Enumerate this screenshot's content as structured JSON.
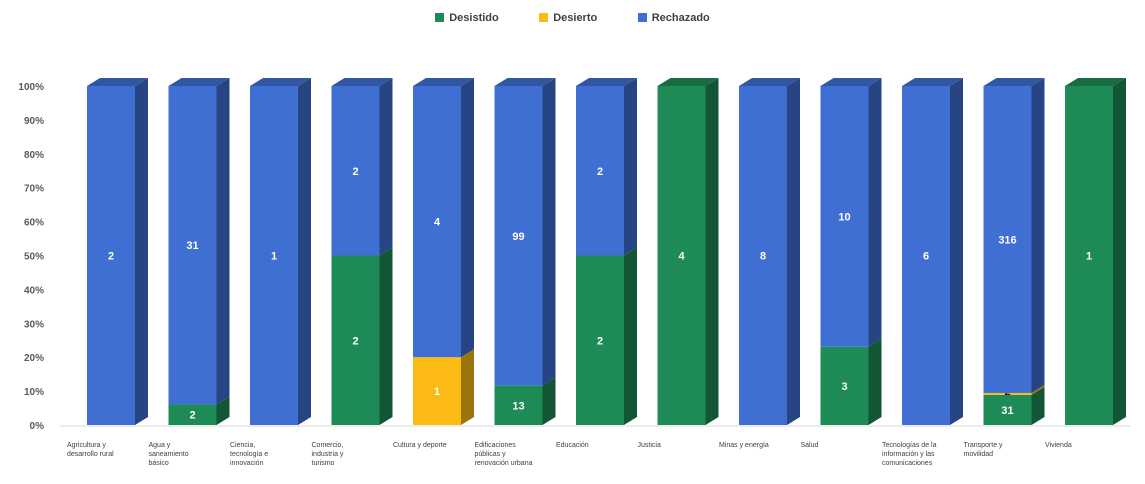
{
  "chart_data": {
    "type": "bar",
    "stacked": "percent",
    "legend_position": "top-center",
    "grid": false,
    "ylim": [
      0,
      100
    ],
    "y_ticks": [
      "0%",
      "10%",
      "20%",
      "30%",
      "40%",
      "50%",
      "60%",
      "70%",
      "80%",
      "90%",
      "100%"
    ],
    "categories": [
      "Agricultura y desarrollo rural",
      "Agua y saneamiento básico",
      "Ciencia, tecnología e innovación",
      "Comercio, industria y turismo",
      "Cultura y deporte",
      "Edificaciones públicas y renovación urbana",
      "Educación",
      "Justicia",
      "Minas y energía",
      "Salud",
      "Tecnologías de la información y las comunicaciones",
      "Transporte y movilidad",
      "Vivienda"
    ],
    "series": [
      {
        "name": "Desistido",
        "color": "#1e8a55",
        "values": [
          0,
          2,
          0,
          2,
          0,
          13,
          2,
          4,
          0,
          3,
          0,
          31,
          1
        ]
      },
      {
        "name": "Desierto",
        "color": "#fbbb14",
        "values": [
          0,
          0,
          0,
          0,
          1,
          0,
          0,
          0,
          0,
          0,
          0,
          2,
          0
        ]
      },
      {
        "name": "Rechazado",
        "color": "#3f6fd2",
        "values": [
          2,
          31,
          1,
          2,
          4,
          99,
          2,
          0,
          8,
          10,
          6,
          316,
          0
        ]
      }
    ]
  }
}
